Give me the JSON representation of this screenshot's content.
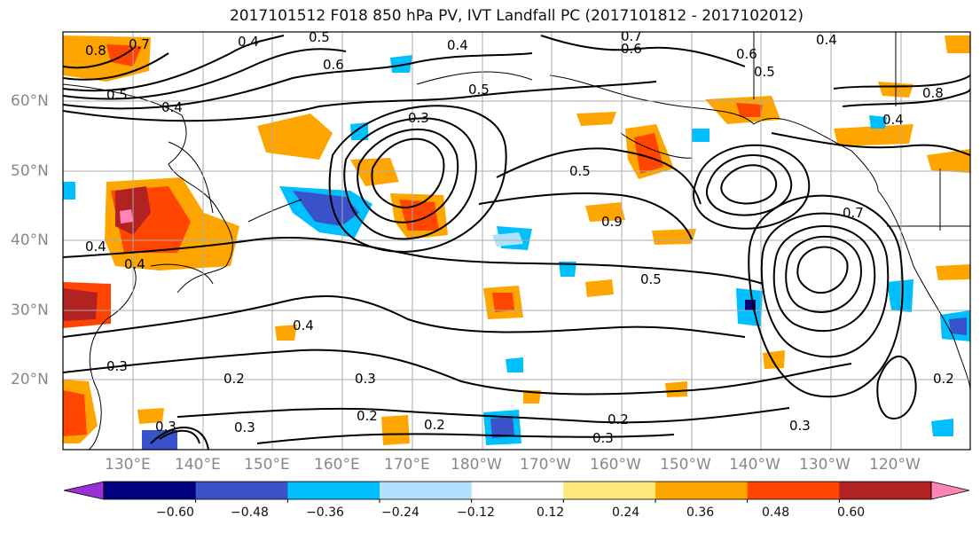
{
  "title": "2017101512 F018 850 hPa PV, IVT Landfall PC (2017101812 - 2017102012)",
  "lat_labels": [
    "60°N",
    "50°N",
    "40°N",
    "30°N",
    "20°N"
  ],
  "lon_labels": [
    "130°E",
    "140°E",
    "150°E",
    "160°E",
    "170°E",
    "180°W",
    "170°W",
    "160°W",
    "150°W",
    "140°W",
    "130°W",
    "120°W"
  ],
  "colorbar": {
    "ticks": [
      "−0.60",
      "−0.48",
      "−0.36",
      "−0.24",
      "−0.12",
      "0.12",
      "0.24",
      "0.36",
      "0.48",
      "0.60"
    ],
    "colors": [
      "#9b30d6",
      "#000080",
      "#3a52c9",
      "#00bfff",
      "#b0e2ff",
      "#ffffff",
      "#ffe97a",
      "#ffa500",
      "#ff4500",
      "#b22222",
      "#ff85b5"
    ]
  },
  "contour_labels": [
    "0.8",
    "0.7",
    "0.4",
    "0.5",
    "0.6",
    "0.4",
    "0.7",
    "0.6",
    "0.4",
    "0.5",
    "0.3",
    "0.5",
    "0.6",
    "0.8",
    "0.4",
    "0.4",
    "0.5",
    "0.5",
    "0.3",
    "0.4",
    "0.4",
    "0.7",
    "0.9",
    "0.4",
    "0.5",
    "0.3",
    "0.2",
    "0.2",
    "0.3",
    "0.3",
    "0.2",
    "0.2",
    "0.3",
    "0.3",
    "0.2"
  ]
}
